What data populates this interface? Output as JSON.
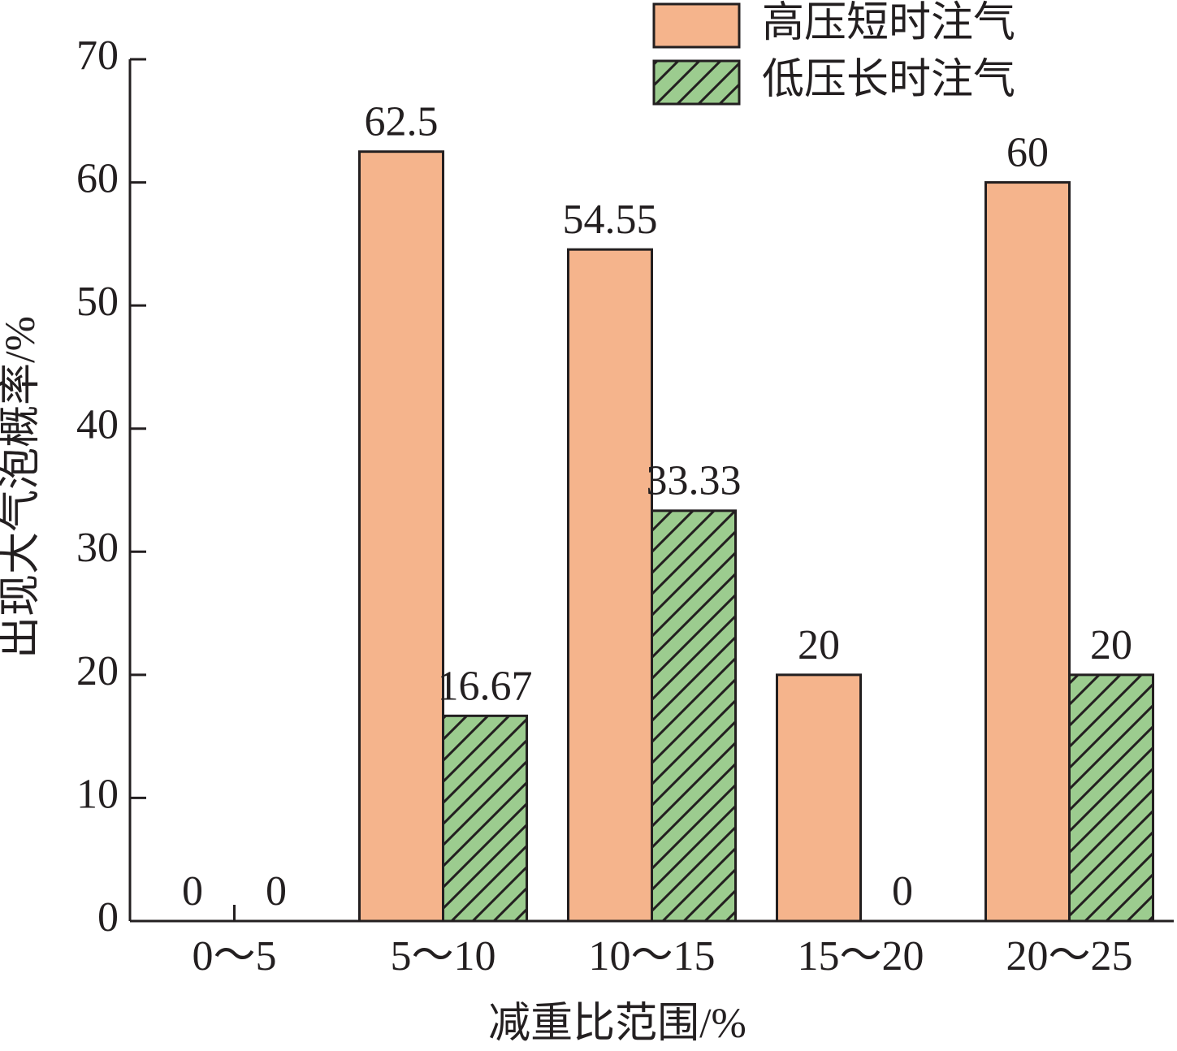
{
  "chart_data": {
    "type": "bar",
    "x_label": "减重比范围/%",
    "y_label": "出现大气泡概率/%",
    "categories": [
      "0～5",
      "5～10",
      "10～15",
      "15～20",
      "20～25"
    ],
    "series": [
      {
        "name": "高压短时注气",
        "color": "#f5b48c",
        "values": [
          0,
          62.5,
          54.55,
          20,
          60
        ]
      },
      {
        "name": "低压长时注气",
        "color": "#9ccc8f",
        "hatch": "/",
        "values": [
          0,
          16.67,
          33.33,
          0,
          20
        ]
      }
    ],
    "ylim": [
      0,
      70
    ],
    "yticks": [
      0,
      10,
      20,
      30,
      40,
      50,
      60,
      70
    ],
    "grid": false,
    "legend": "upper right"
  }
}
